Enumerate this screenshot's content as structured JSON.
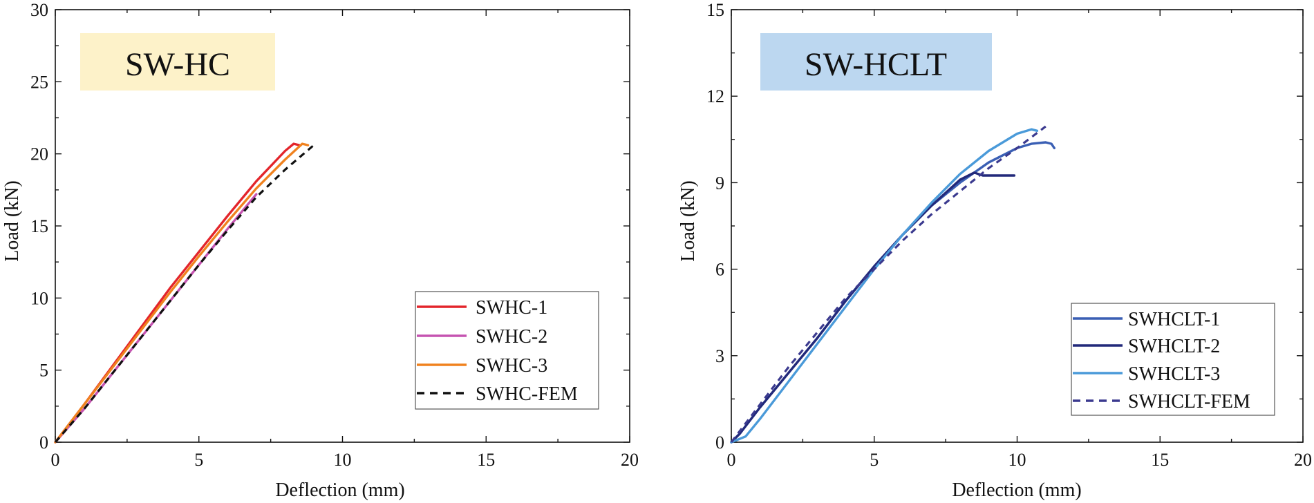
{
  "chart_data": [
    {
      "type": "line",
      "badge": "SW-HC",
      "badge_color": "#fdf2c9",
      "xlabel": "Deflection (mm)",
      "ylabel": "Load (kN)",
      "xlim": [
        0,
        20
      ],
      "ylim": [
        0,
        30
      ],
      "xticks": [
        0,
        5,
        10,
        15,
        20
      ],
      "yticks": [
        0,
        5,
        10,
        15,
        20,
        25,
        30
      ],
      "legend_position": "bottom-right",
      "series": [
        {
          "name": "SWHC-1",
          "color": "#e3252b",
          "dash": "solid",
          "x": [
            0,
            1,
            2,
            3,
            4,
            5,
            6,
            7,
            8,
            8.3,
            8.5
          ],
          "y": [
            0,
            2.6,
            5.3,
            8.0,
            10.7,
            13.2,
            15.7,
            18.1,
            20.2,
            20.7,
            20.6
          ]
        },
        {
          "name": "SWHC-2",
          "color": "#c554b1",
          "dash": "solid",
          "x": [
            0,
            1,
            2,
            3,
            4,
            5,
            6,
            7
          ],
          "y": [
            0,
            2.3,
            4.8,
            7.3,
            9.8,
            12.3,
            14.8,
            17.2
          ]
        },
        {
          "name": "SWHC-3",
          "color": "#f0821f",
          "dash": "solid",
          "x": [
            0,
            1,
            2,
            3,
            4,
            5,
            6,
            7,
            8,
            8.6,
            8.8
          ],
          "y": [
            0,
            2.6,
            5.2,
            7.8,
            10.4,
            12.9,
            15.3,
            17.6,
            19.6,
            20.7,
            20.6
          ]
        },
        {
          "name": "SWHC-FEM",
          "color": "#111111",
          "dash": "dashed",
          "x": [
            0,
            1,
            2,
            3,
            4,
            5,
            6,
            7,
            8,
            9
          ],
          "y": [
            0,
            2.3,
            4.8,
            7.3,
            9.8,
            12.3,
            14.7,
            17.0,
            18.9,
            20.6
          ]
        }
      ]
    },
    {
      "type": "line",
      "badge": "SW-HCLT",
      "badge_color": "#bcd7f0",
      "xlabel": "Deflection (mm)",
      "ylabel": "Load (kN)",
      "xlim": [
        0,
        20
      ],
      "ylim": [
        0,
        15
      ],
      "xticks": [
        0,
        5,
        10,
        15,
        20
      ],
      "yticks": [
        0,
        3,
        6,
        9,
        12,
        15
      ],
      "legend_position": "bottom-right",
      "series": [
        {
          "name": "SWHCLT-1",
          "color": "#3a5fb4",
          "dash": "solid",
          "x": [
            0,
            0.3,
            1,
            2,
            3,
            4,
            5,
            6,
            7,
            8,
            9,
            10,
            10.5,
            11,
            11.2,
            11.3
          ],
          "y": [
            0,
            0.3,
            1.2,
            2.4,
            3.6,
            4.9,
            6.1,
            7.2,
            8.2,
            9.0,
            9.7,
            10.2,
            10.35,
            10.4,
            10.35,
            10.2
          ]
        },
        {
          "name": "SWHCLT-2",
          "color": "#22297a",
          "dash": "solid",
          "x": [
            0,
            0.3,
            1,
            2,
            3,
            4,
            5,
            6,
            7,
            8,
            8.5,
            8.8,
            9.9
          ],
          "y": [
            0,
            0.3,
            1.2,
            2.4,
            3.6,
            4.9,
            6.1,
            7.2,
            8.2,
            9.1,
            9.35,
            9.25,
            9.25
          ]
        },
        {
          "name": "SWHCLT-3",
          "color": "#4a9ad9",
          "dash": "solid",
          "x": [
            0,
            0.5,
            1,
            2,
            3,
            4,
            5,
            6,
            7,
            8,
            9,
            10,
            10.5,
            10.7
          ],
          "y": [
            0,
            0.2,
            0.8,
            2.1,
            3.4,
            4.7,
            6.0,
            7.2,
            8.3,
            9.3,
            10.1,
            10.7,
            10.85,
            10.8
          ]
        },
        {
          "name": "SWHCLT-FEM",
          "color": "#3b3a8f",
          "dash": "dashed",
          "x": [
            0,
            1,
            2,
            3,
            4,
            5,
            6,
            7,
            8,
            9,
            10,
            11
          ],
          "y": [
            0,
            1.3,
            2.6,
            3.8,
            5.0,
            6.0,
            7.0,
            7.9,
            8.7,
            9.5,
            10.2,
            10.95
          ]
        }
      ]
    }
  ]
}
